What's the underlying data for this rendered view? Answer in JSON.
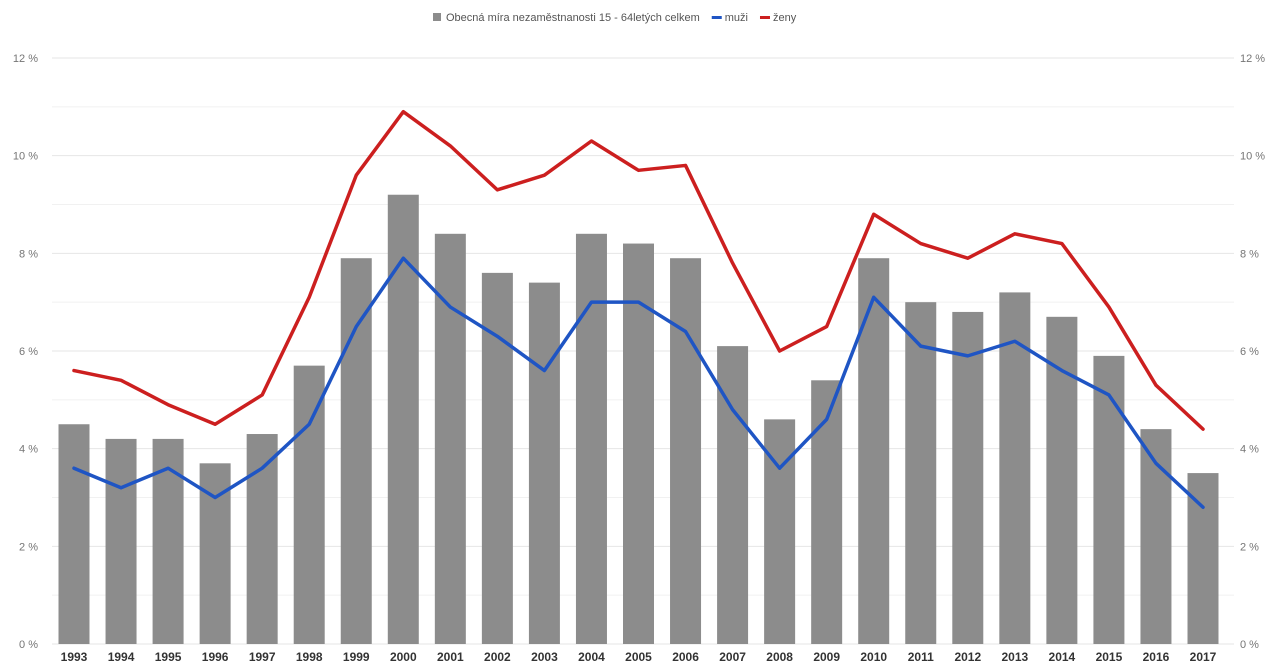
{
  "chart_data": {
    "type": "bar",
    "title": "",
    "xlabel": "",
    "ylabel": "",
    "ylim": [
      0,
      12
    ],
    "y_ticks": [
      "0 %",
      "2 %",
      "4 %",
      "6 %",
      "8 %",
      "10 %",
      "12 %"
    ],
    "y_tick_values": [
      0,
      2,
      4,
      6,
      8,
      10,
      12
    ],
    "grid": true,
    "legend_position": "top-center",
    "categories": [
      "1993",
      "1994",
      "1995",
      "1996",
      "1997",
      "1998",
      "1999",
      "2000",
      "2001",
      "2002",
      "2003",
      "2004",
      "2005",
      "2006",
      "2007",
      "2008",
      "2009",
      "2010",
      "2011",
      "2012",
      "2013",
      "2014",
      "2015",
      "2016",
      "2017"
    ],
    "series": [
      {
        "name": "Obecná míra nezaměstnanosti 15 - 64letých celkem",
        "kind": "bar",
        "color": "#8c8c8c",
        "values": [
          4.5,
          4.2,
          4.2,
          3.7,
          4.3,
          5.7,
          7.9,
          9.2,
          8.4,
          7.6,
          7.4,
          8.4,
          8.2,
          7.9,
          6.1,
          4.6,
          5.4,
          7.9,
          7.0,
          6.8,
          7.2,
          6.7,
          5.9,
          4.4,
          3.5
        ]
      },
      {
        "name": "muži",
        "kind": "line",
        "color": "#1f55c4",
        "values": [
          3.6,
          3.2,
          3.6,
          3.0,
          3.6,
          4.5,
          6.5,
          7.9,
          6.9,
          6.3,
          5.6,
          7.0,
          7.0,
          6.4,
          4.8,
          3.6,
          4.6,
          7.1,
          6.1,
          5.9,
          6.2,
          5.6,
          5.1,
          3.7,
          2.8
        ]
      },
      {
        "name": "ženy",
        "kind": "line",
        "color": "#cc1f1f",
        "values": [
          5.6,
          5.4,
          4.9,
          4.5,
          5.1,
          7.1,
          9.6,
          10.9,
          10.2,
          9.3,
          9.6,
          10.3,
          9.7,
          9.8,
          7.8,
          6.0,
          6.5,
          8.8,
          8.2,
          7.9,
          8.4,
          8.2,
          6.9,
          5.3,
          4.4
        ]
      }
    ]
  }
}
